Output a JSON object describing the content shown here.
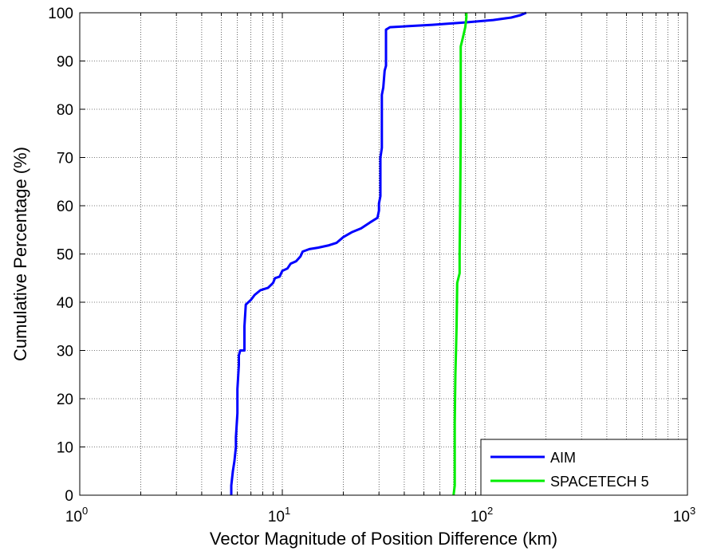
{
  "chart_data": {
    "type": "line",
    "xlabel": "Vector Magnitude of Position Difference (km)",
    "ylabel": "Cumulative Percentage (%)",
    "x_scale": "log",
    "xlim": [
      1,
      1000
    ],
    "ylim": [
      0,
      100
    ],
    "grid": true,
    "x_ticks": [
      {
        "value": 1,
        "base": "10",
        "exp": "0"
      },
      {
        "value": 10,
        "base": "10",
        "exp": "1"
      },
      {
        "value": 100,
        "base": "10",
        "exp": "2"
      },
      {
        "value": 1000,
        "base": "10",
        "exp": "3"
      }
    ],
    "y_ticks": [
      0,
      10,
      20,
      30,
      40,
      50,
      60,
      70,
      80,
      90,
      100
    ],
    "legend_position": "bottom-right",
    "series": [
      {
        "name": "AIM",
        "color": "#0000ff",
        "points": [
          [
            5.6,
            0
          ],
          [
            5.6,
            2
          ],
          [
            5.7,
            5
          ],
          [
            5.8,
            7
          ],
          [
            5.9,
            10
          ],
          [
            5.9,
            12
          ],
          [
            6.0,
            17
          ],
          [
            6.0,
            22
          ],
          [
            6.1,
            27
          ],
          [
            6.1,
            29
          ],
          [
            6.2,
            30
          ],
          [
            6.5,
            30
          ],
          [
            6.5,
            35
          ],
          [
            6.6,
            39.5
          ],
          [
            7.0,
            40.5
          ],
          [
            7.3,
            41.5
          ],
          [
            7.8,
            42.5
          ],
          [
            8.5,
            43
          ],
          [
            9.0,
            44
          ],
          [
            9.2,
            45
          ],
          [
            9.7,
            45.3
          ],
          [
            10.0,
            46.5
          ],
          [
            10.6,
            47
          ],
          [
            11.0,
            48
          ],
          [
            11.7,
            48.5
          ],
          [
            12.3,
            49.5
          ],
          [
            12.6,
            50.5
          ],
          [
            13.6,
            51
          ],
          [
            15.0,
            51.3
          ],
          [
            17.0,
            51.8
          ],
          [
            18.5,
            52.3
          ],
          [
            20.0,
            53.5
          ],
          [
            22.0,
            54.5
          ],
          [
            24.5,
            55.3
          ],
          [
            27.0,
            56.5
          ],
          [
            29.5,
            57.5
          ],
          [
            30.0,
            59
          ],
          [
            30.0,
            60.5
          ],
          [
            30.5,
            62
          ],
          [
            30.5,
            70
          ],
          [
            31.0,
            72
          ],
          [
            31.0,
            83
          ],
          [
            31.5,
            84.5
          ],
          [
            32.0,
            88
          ],
          [
            32.5,
            89
          ],
          [
            32.5,
            96.5
          ],
          [
            34.0,
            97
          ],
          [
            55.0,
            97.5
          ],
          [
            80.0,
            98
          ],
          [
            110.0,
            98.5
          ],
          [
            135.0,
            99
          ],
          [
            150.0,
            99.5
          ],
          [
            160.0,
            100
          ]
        ]
      },
      {
        "name": "SPACETECH 5",
        "color": "#00ee00",
        "points": [
          [
            70.0,
            0
          ],
          [
            71.0,
            2
          ],
          [
            71.0,
            15
          ],
          [
            71.5,
            25
          ],
          [
            72.0,
            30
          ],
          [
            72.5,
            35
          ],
          [
            73.0,
            44
          ],
          [
            75.0,
            46
          ],
          [
            75.0,
            50
          ],
          [
            75.5,
            60
          ],
          [
            76.0,
            75
          ],
          [
            76.0,
            88
          ],
          [
            76.0,
            93
          ],
          [
            78.0,
            95
          ],
          [
            80.0,
            97
          ],
          [
            81.0,
            99
          ],
          [
            81.0,
            100
          ]
        ]
      }
    ]
  }
}
